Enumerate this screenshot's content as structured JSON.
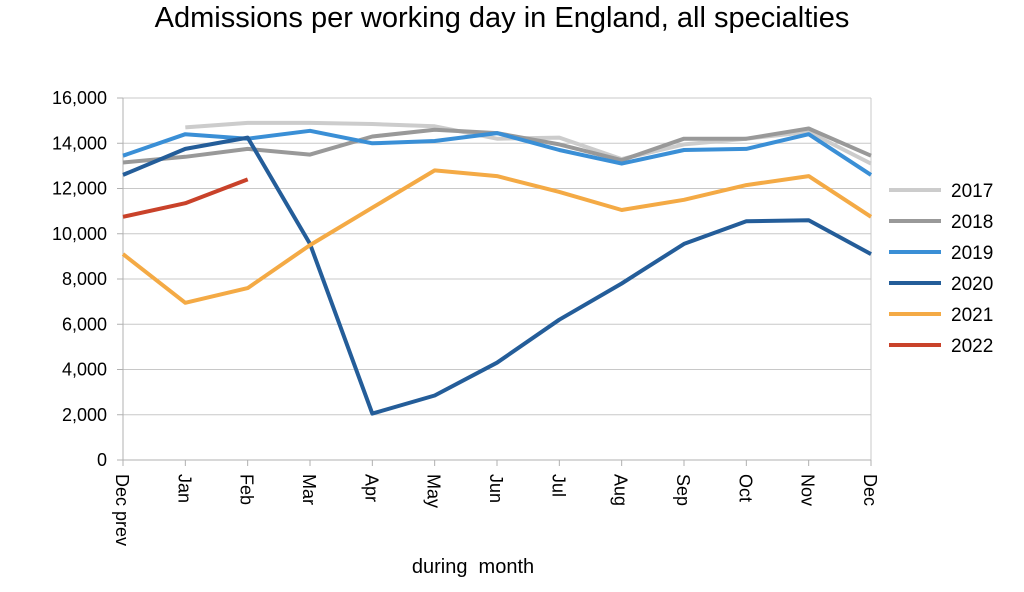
{
  "chart_data": {
    "type": "line",
    "title": "Admissions per working day in England, all specialties",
    "xlabel": "during  month",
    "ylabel": "",
    "ylim": [
      0,
      16000
    ],
    "yticks": [
      0,
      2000,
      4000,
      6000,
      8000,
      10000,
      12000,
      14000,
      16000
    ],
    "ytick_labels": [
      "0",
      "2,000",
      "4,000",
      "6,000",
      "8,000",
      "10,000",
      "12,000",
      "14,000",
      "16,000"
    ],
    "categories": [
      "Dec prev",
      "Jan",
      "Feb",
      "Mar",
      "Apr",
      "May",
      "Jun",
      "Jul",
      "Aug",
      "Sep",
      "Oct",
      "Nov",
      "Dec"
    ],
    "grid": true,
    "legend_position": "right",
    "series": [
      {
        "name": "2017",
        "color": "#cccccc",
        "values": [
          null,
          14700,
          14900,
          14900,
          14850,
          14750,
          14200,
          14250,
          13300,
          13950,
          14200,
          14500,
          13100
        ]
      },
      {
        "name": "2018",
        "color": "#999999",
        "values": [
          13150,
          13400,
          13750,
          13500,
          14300,
          14600,
          14450,
          13950,
          13250,
          14200,
          14200,
          14650,
          13450
        ]
      },
      {
        "name": "2019",
        "color": "#3a8fd6",
        "values": [
          13450,
          14400,
          14200,
          14550,
          14000,
          14100,
          14450,
          13700,
          13100,
          13700,
          13750,
          14400,
          12600
        ]
      },
      {
        "name": "2020",
        "color": "#245d99",
        "values": [
          12600,
          13750,
          14250,
          9550,
          2050,
          2850,
          4300,
          6200,
          7800,
          9550,
          10550,
          10600,
          9100
        ]
      },
      {
        "name": "2021",
        "color": "#f4aa45",
        "values": [
          9100,
          6950,
          7600,
          9500,
          11150,
          12800,
          12550,
          11850,
          11050,
          11500,
          12150,
          12550,
          10750
        ]
      },
      {
        "name": "2022",
        "color": "#c9422a",
        "values": [
          10750,
          11350,
          12400,
          null,
          null,
          null,
          null,
          null,
          null,
          null,
          null,
          null,
          null
        ]
      }
    ]
  }
}
